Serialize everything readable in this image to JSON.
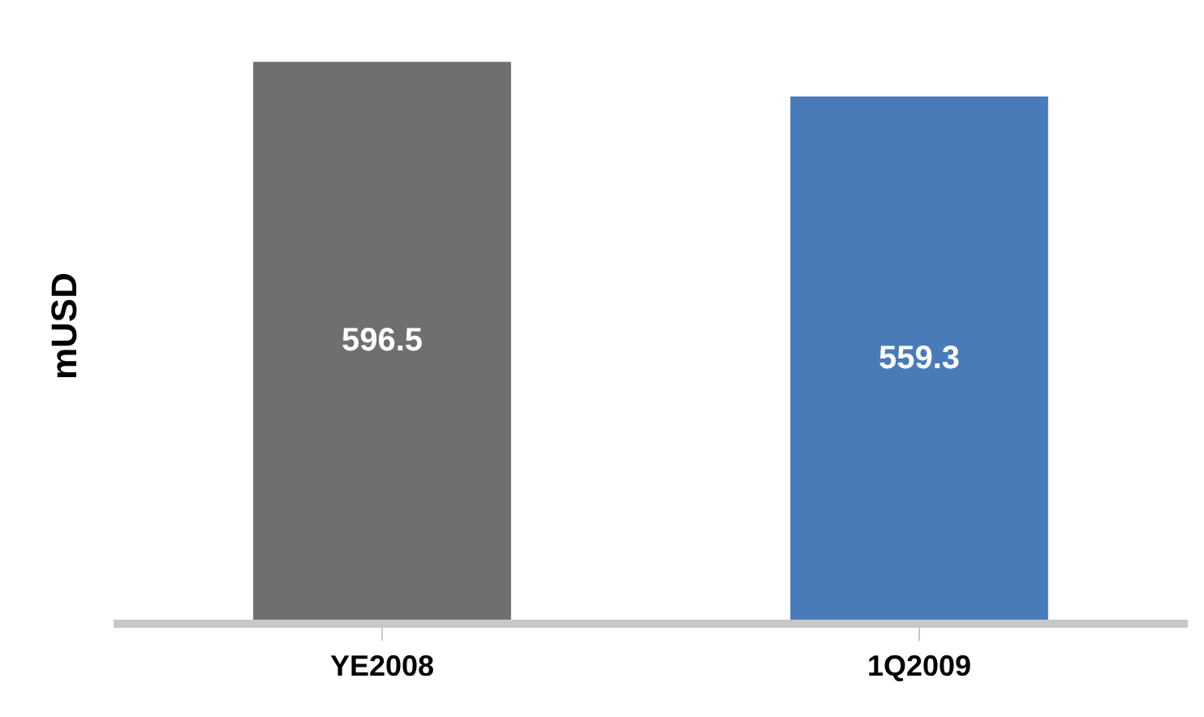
{
  "chart_data": {
    "type": "bar",
    "ylabel": "mUSD",
    "categories": [
      "YE2008",
      "1Q2009"
    ],
    "values": [
      596.5,
      559.3
    ],
    "colors": [
      "#6f6f6f",
      "#4a7bb9"
    ],
    "data_labels": true,
    "tick_labels": "x"
  }
}
